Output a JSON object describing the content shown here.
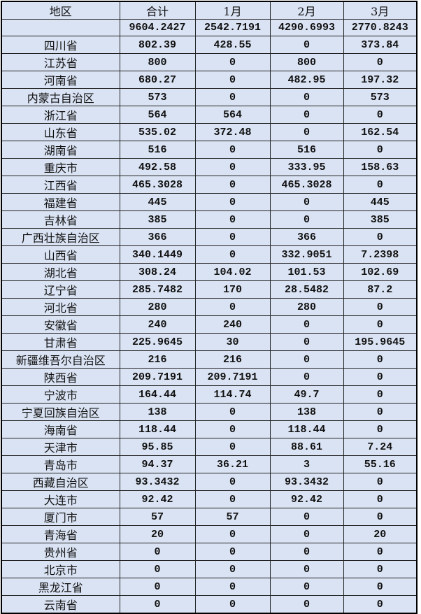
{
  "headers": [
    "地区",
    "合计",
    "1月",
    "2月",
    "3月"
  ],
  "total": [
    "",
    "9604.2427",
    "2542.7191",
    "4290.6993",
    "2770.8243"
  ],
  "rows": [
    [
      "四川省",
      "802.39",
      "428.55",
      "0",
      "373.84"
    ],
    [
      "江苏省",
      "800",
      "0",
      "800",
      "0"
    ],
    [
      "河南省",
      "680.27",
      "0",
      "482.95",
      "197.32"
    ],
    [
      "内蒙古自治区",
      "573",
      "0",
      "0",
      "573"
    ],
    [
      "浙江省",
      "564",
      "564",
      "0",
      "0"
    ],
    [
      "山东省",
      "535.02",
      "372.48",
      "0",
      "162.54"
    ],
    [
      "湖南省",
      "516",
      "0",
      "516",
      "0"
    ],
    [
      "重庆市",
      "492.58",
      "0",
      "333.95",
      "158.63"
    ],
    [
      "江西省",
      "465.3028",
      "0",
      "465.3028",
      "0"
    ],
    [
      "福建省",
      "445",
      "0",
      "0",
      "445"
    ],
    [
      "吉林省",
      "385",
      "0",
      "0",
      "385"
    ],
    [
      "广西壮族自治区",
      "366",
      "0",
      "366",
      "0"
    ],
    [
      "山西省",
      "340.1449",
      "0",
      "332.9051",
      "7.2398"
    ],
    [
      "湖北省",
      "308.24",
      "104.02",
      "101.53",
      "102.69"
    ],
    [
      "辽宁省",
      "285.7482",
      "170",
      "28.5482",
      "87.2"
    ],
    [
      "河北省",
      "280",
      "0",
      "280",
      "0"
    ],
    [
      "安徽省",
      "240",
      "240",
      "0",
      "0"
    ],
    [
      "甘肃省",
      "225.9645",
      "30",
      "0",
      "195.9645"
    ],
    [
      "新疆维吾尔自治区",
      "216",
      "216",
      "0",
      "0"
    ],
    [
      "陕西省",
      "209.7191",
      "209.7191",
      "0",
      "0"
    ],
    [
      "宁波市",
      "164.44",
      "114.74",
      "49.7",
      "0"
    ],
    [
      "宁夏回族自治区",
      "138",
      "0",
      "138",
      "0"
    ],
    [
      "海南省",
      "118.44",
      "0",
      "118.44",
      "0"
    ],
    [
      "天津市",
      "95.85",
      "0",
      "88.61",
      "7.24"
    ],
    [
      "青岛市",
      "94.37",
      "36.21",
      "3",
      "55.16"
    ],
    [
      "西藏自治区",
      "93.3432",
      "0",
      "93.3432",
      "0"
    ],
    [
      "大连市",
      "92.42",
      "0",
      "92.42",
      "0"
    ],
    [
      "厦门市",
      "57",
      "57",
      "0",
      "0"
    ],
    [
      "青海省",
      "20",
      "0",
      "0",
      "20"
    ],
    [
      "贵州省",
      "0",
      "0",
      "0",
      "0"
    ],
    [
      "北京市",
      "0",
      "0",
      "0",
      "0"
    ],
    [
      "黑龙江省",
      "0",
      "0",
      "0",
      "0"
    ],
    [
      "云南省",
      "0",
      "0",
      "0",
      "0"
    ]
  ],
  "colors": {
    "cell_background": "#dae3f3",
    "border": "#222222"
  }
}
